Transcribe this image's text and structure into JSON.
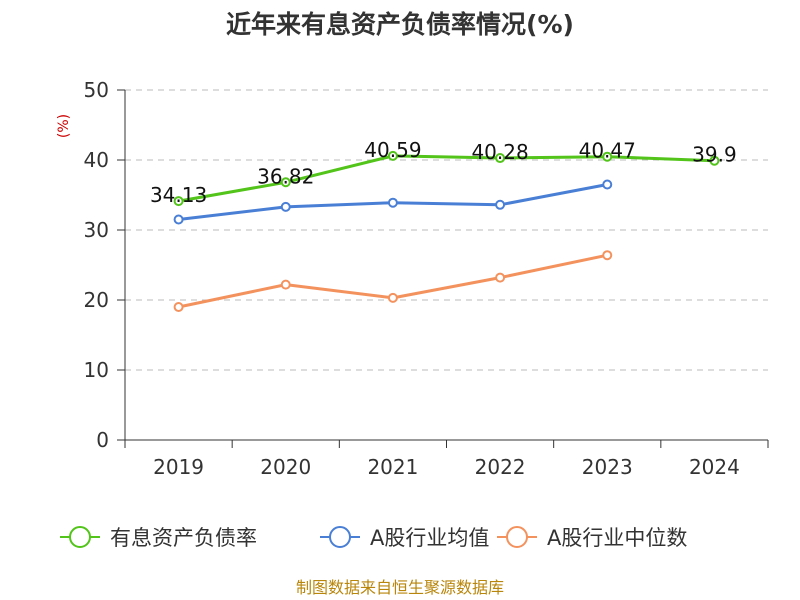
{
  "chart_data": {
    "type": "line",
    "title": "近年来有息资产负债率情况(%)",
    "unit_label": "(%)",
    "categories": [
      "2019",
      "2020",
      "2021",
      "2022",
      "2023",
      "2024"
    ],
    "ylim": [
      0,
      50
    ],
    "yticks": [
      "0",
      "10",
      "20",
      "30",
      "40",
      "50"
    ],
    "grid": true,
    "legend_position": "bottom",
    "series": [
      {
        "name": "有息资产负债率",
        "color": "#52c41a",
        "values": [
          34.13,
          36.82,
          40.59,
          40.28,
          40.47,
          39.9
        ],
        "labels": [
          "34.13",
          "36.82",
          "40.59",
          "40.28",
          "40.47",
          "39.9"
        ]
      },
      {
        "name": "A股行业均值",
        "color": "#4a7fd6",
        "values": [
          31.5,
          33.3,
          33.9,
          33.6,
          36.5,
          null
        ]
      },
      {
        "name": "A股行业中位数",
        "color": "#f4925e",
        "values": [
          19.0,
          22.2,
          20.3,
          23.2,
          26.4,
          null
        ]
      }
    ],
    "source": "制图数据来自恒生聚源数据库"
  }
}
